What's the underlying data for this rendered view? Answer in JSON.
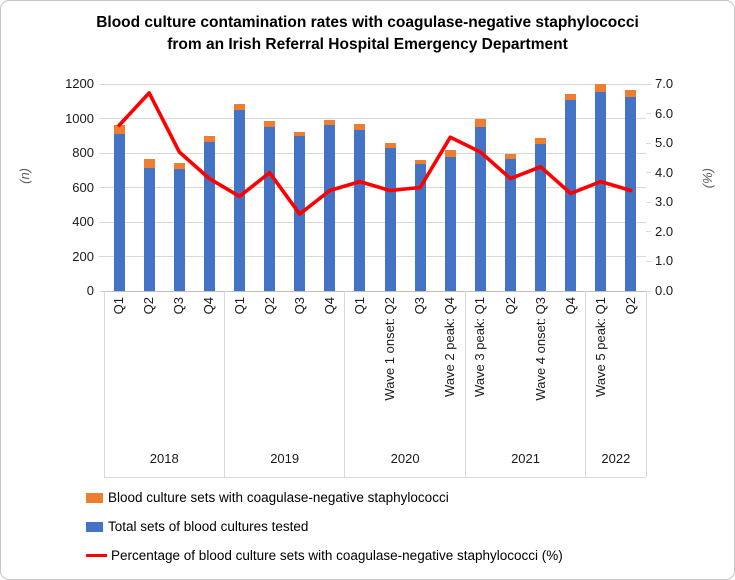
{
  "title_line1": "Blood culture contamination rates with coagulase-negative staphylococci",
  "title_line2": "from an Irish Referral Hospital Emergency Department",
  "chart_data": {
    "type": "bar",
    "title": "Blood culture contamination rates with coagulase-negative staphylococci from an Irish Referral Hospital Emergency Department",
    "grid": true,
    "legend_position": "bottom-left",
    "x_labels": [
      "Q1",
      "Q2",
      "Q3",
      "Q4",
      "Q1",
      "Q2",
      "Q3",
      "Q4",
      "Q1",
      "Wave 1 onset: Q2",
      "Q3",
      "Wave 2 peak: Q4",
      "Wave 3 peak: Q1",
      "Q2",
      "Wave 4 onset: Q3",
      "Q4",
      "Wave 5 peak: Q1",
      "Q2"
    ],
    "year_groups": [
      {
        "label": "2018",
        "count": 4
      },
      {
        "label": "2019",
        "count": 4
      },
      {
        "label": "2020",
        "count": 4
      },
      {
        "label": "2021",
        "count": 4
      },
      {
        "label": "2022",
        "count": 2
      }
    ],
    "left_axis": {
      "label": "(n)",
      "min": 0,
      "max": 1200,
      "step": 200
    },
    "right_axis": {
      "label": "(%)",
      "min": 0,
      "max": 7,
      "step": 1
    },
    "series": [
      {
        "name": "Blood culture sets with coagulase-negative staphylococci",
        "type": "bar-stack-top",
        "color": "#ED7D31",
        "values": [
          51,
          48,
          33,
          33,
          34,
          38,
          23,
          33,
          35,
          28,
          26,
          40,
          45,
          29,
          36,
          36,
          43,
          38
        ]
      },
      {
        "name": "Total sets of blood cultures tested",
        "type": "bar-stack-base",
        "color": "#4472C4",
        "values": [
          910,
          715,
          710,
          865,
          1050,
          950,
          900,
          960,
          935,
          830,
          735,
          775,
          950,
          765,
          850,
          1105,
          1155,
          1125
        ]
      },
      {
        "name": "Percentage of blood culture sets with coagulase-negative staphylococci (%)",
        "type": "line",
        "color": "#FF0000",
        "values": [
          5.6,
          6.7,
          4.7,
          3.8,
          3.2,
          4.0,
          2.6,
          3.4,
          3.7,
          3.4,
          3.5,
          5.2,
          4.7,
          3.8,
          4.2,
          3.3,
          3.7,
          3.4
        ]
      }
    ]
  },
  "colors": {
    "bar_blue": "#4472C4",
    "bar_orange": "#ED7D31",
    "line_red": "#FF0000",
    "gridline": "#d9d9d9"
  }
}
